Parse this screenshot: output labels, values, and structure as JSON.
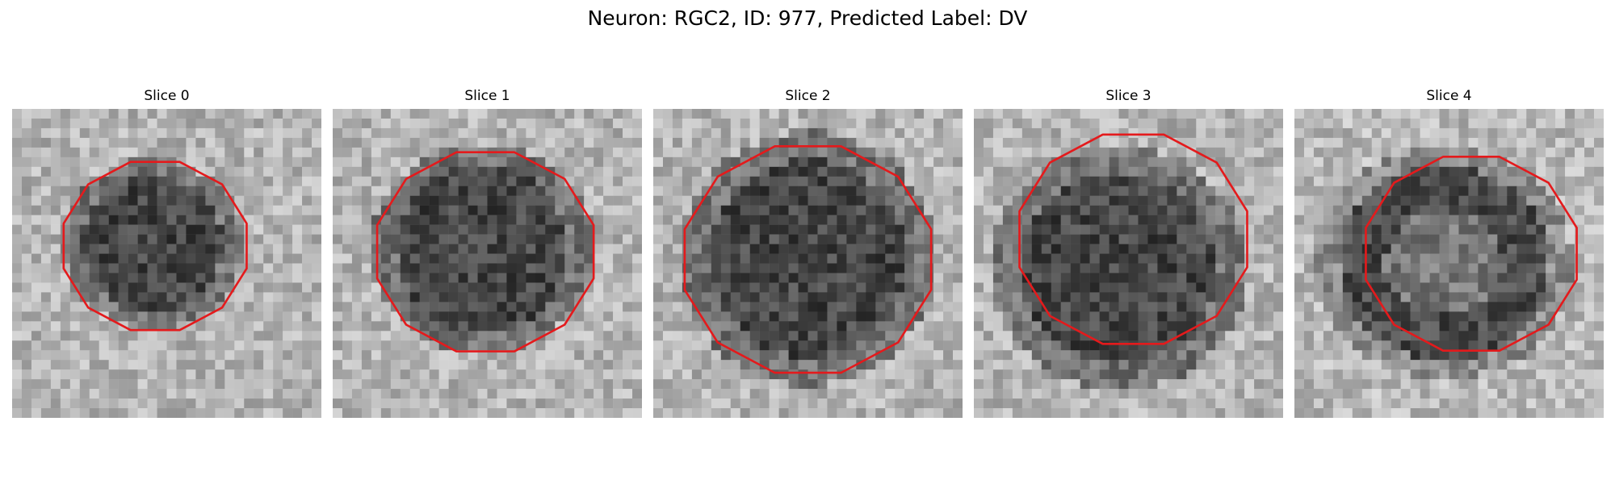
{
  "figure": {
    "title": "Neuron: RGC2, ID: 977, Predicted Label: DV"
  },
  "contour_color": "#e41a1c",
  "panels": [
    {
      "title": "Slice 0"
    },
    {
      "title": "Slice 1"
    },
    {
      "title": "Slice 2"
    },
    {
      "title": "Slice 3"
    },
    {
      "title": "Slice 4"
    }
  ]
}
